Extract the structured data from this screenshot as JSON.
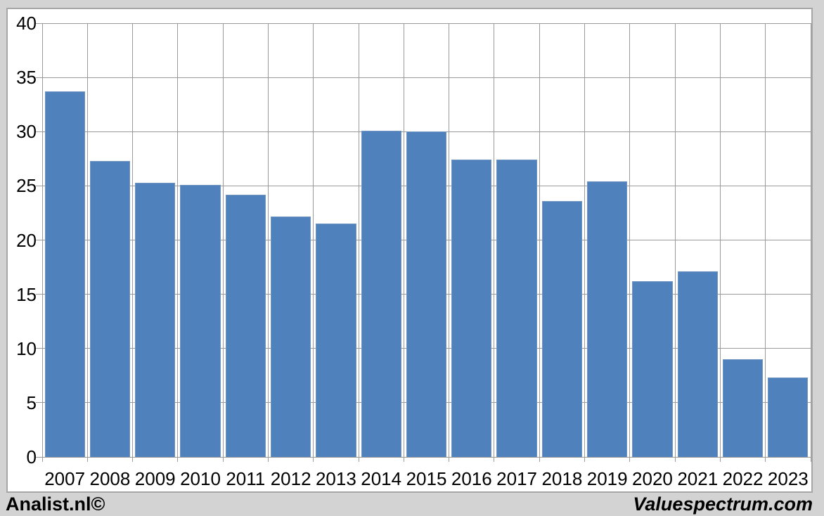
{
  "footer": {
    "left": "Analist.nl©",
    "right": "Valuespectrum.com"
  },
  "chart_data": {
    "type": "bar",
    "title": "",
    "xlabel": "",
    "ylabel": "",
    "categories": [
      "2007",
      "2008",
      "2009",
      "2010",
      "2011",
      "2012",
      "2013",
      "2014",
      "2015",
      "2016",
      "2017",
      "2018",
      "2019",
      "2020",
      "2021",
      "2022",
      "2023"
    ],
    "values": [
      33.7,
      27.3,
      25.3,
      25.1,
      24.2,
      22.2,
      21.5,
      30.1,
      30.0,
      27.4,
      27.4,
      23.6,
      25.4,
      16.2,
      17.1,
      9.0,
      7.3
    ],
    "ylim": [
      0,
      40
    ],
    "ytick_step": 5,
    "yticks": [
      0,
      5,
      10,
      15,
      20,
      25,
      30,
      35,
      40
    ],
    "grid": true,
    "legend": false,
    "bar_color": "#4f81bd",
    "bar_edge_color": "#7195c2",
    "gridline_color": "#9b9b9b",
    "background": "#d3d3d3",
    "plot_background": "#ffffff",
    "frame_border_color": "#a6a6a6",
    "text_color": "#000000"
  }
}
